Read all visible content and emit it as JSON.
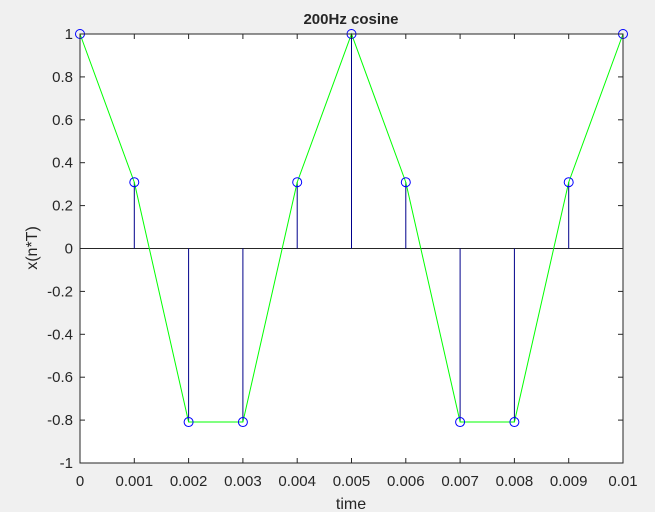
{
  "chart_data": {
    "type": "stem",
    "title": "200Hz cosine",
    "xlabel": "time",
    "ylabel": "x(n*T)",
    "xlim": [
      0,
      0.01
    ],
    "ylim": [
      -1,
      1
    ],
    "xticks": [
      "0",
      "0.001",
      "0.002",
      "0.003",
      "0.004",
      "0.005",
      "0.006",
      "0.007",
      "0.008",
      "0.009",
      "0.01"
    ],
    "xtick_values": [
      0,
      0.001,
      0.002,
      0.003,
      0.004,
      0.005,
      0.006,
      0.007,
      0.008,
      0.009,
      0.01
    ],
    "yticks": [
      "-1",
      "-0.8",
      "-0.6",
      "-0.4",
      "-0.2",
      "0",
      "0.2",
      "0.4",
      "0.6",
      "0.8",
      "1"
    ],
    "ytick_values": [
      -1,
      -0.8,
      -0.6,
      -0.4,
      -0.2,
      0,
      0.2,
      0.4,
      0.6,
      0.8,
      1
    ],
    "grid": false,
    "series": [
      {
        "style": "stem",
        "x": [
          0,
          0.001,
          0.002,
          0.003,
          0.004,
          0.005,
          0.006,
          0.007,
          0.008,
          0.009,
          0.01
        ],
        "y": [
          1,
          0.309,
          -0.809,
          -0.809,
          0.309,
          1,
          0.309,
          -0.809,
          -0.809,
          0.309,
          1
        ]
      },
      {
        "style": "line",
        "x": [
          0,
          0.001,
          0.002,
          0.003,
          0.004,
          0.005,
          0.006,
          0.007,
          0.008,
          0.009,
          0.01
        ],
        "y": [
          1,
          0.309,
          -0.809,
          -0.809,
          0.309,
          1,
          0.309,
          -0.809,
          -0.809,
          0.309,
          1
        ]
      }
    ]
  },
  "colors": {
    "figure_background": "#f0f0f0",
    "axes_background": "#ffffff",
    "axes": "#262626",
    "stem": "#00008b",
    "marker": "#0000ff",
    "line": "#00ff00"
  }
}
